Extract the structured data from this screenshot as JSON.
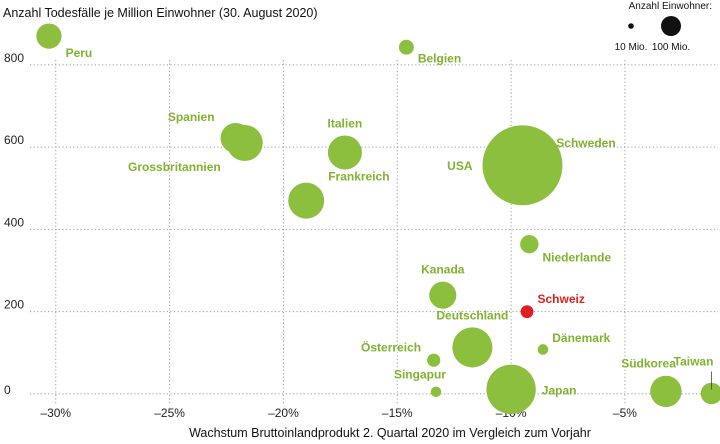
{
  "chart_data": {
    "type": "scatter",
    "title": "Anzahl Todesfälle je Million Einwohner (30. August 2020)",
    "xlabel": "Wachstum Bruttoinlandprodukt 2. Quartal 2020 im Vergleich zum Vorjahr",
    "ylabel": "Anzahl Todesfälle je Million Einwohner (30. August 2020)",
    "xlim": [
      -31,
      -1
    ],
    "ylim": [
      -10,
      880
    ],
    "x_ticks": [
      -30,
      -25,
      -20,
      -15,
      -10,
      -5
    ],
    "x_tick_labels": [
      "–30%",
      "–25%",
      "–20%",
      "–15%",
      "–10%",
      "–5%"
    ],
    "y_ticks": [
      0,
      200,
      400,
      600,
      800
    ],
    "y_tick_labels": [
      "0",
      "200",
      "400",
      "600",
      "800"
    ],
    "grid": "dotted",
    "size_legend": {
      "title": "Anzahl Einwohner:",
      "entries": [
        {
          "label": "10 Mio.",
          "population_mio": 10
        },
        {
          "label": "100 Mio.",
          "population_mio": 100
        }
      ]
    },
    "colors": {
      "default": "#8dbf3f",
      "highlight": "#e02020",
      "label": "#7fb22e"
    },
    "points": [
      {
        "label": "Peru",
        "x": -30.3,
        "y": 870,
        "population_mio": 33,
        "anchor": "right-below"
      },
      {
        "label": "Belgien",
        "x": -14.6,
        "y": 843,
        "population_mio": 11.5,
        "anchor": "right-below"
      },
      {
        "label": "Spanien",
        "x": -22.1,
        "y": 622,
        "population_mio": 47,
        "anchor": "left-above"
      },
      {
        "label": "Grossbritannien",
        "x": -21.7,
        "y": 610,
        "population_mio": 67,
        "anchor": "left-below"
      },
      {
        "label": "Italien",
        "x": -17.3,
        "y": 587,
        "population_mio": 60,
        "anchor": "above"
      },
      {
        "label": "Frankreich",
        "x": -19.0,
        "y": 470,
        "population_mio": 67,
        "anchor": "right-above"
      },
      {
        "label": "USA",
        "x": -9.5,
        "y": 556,
        "population_mio": 330,
        "anchor": "left"
      },
      {
        "label": "Schweden",
        "x": -8.5,
        "y": 578,
        "population_mio": 10.3,
        "anchor": "right-above"
      },
      {
        "label": "Niederlande",
        "x": -9.2,
        "y": 364,
        "population_mio": 17.4,
        "anchor": "right-below"
      },
      {
        "label": "Kanada",
        "x": -13.0,
        "y": 240,
        "population_mio": 38,
        "anchor": "above"
      },
      {
        "label": "Schweiz",
        "x": -9.3,
        "y": 200,
        "population_mio": 8.6,
        "anchor": "right-above",
        "highlight": true
      },
      {
        "label": "Deutschland",
        "x": -11.7,
        "y": 113,
        "population_mio": 83,
        "anchor": "above"
      },
      {
        "label": "Dänemark",
        "x": -8.6,
        "y": 108,
        "population_mio": 5.8,
        "anchor": "right-above"
      },
      {
        "label": "Österreich",
        "x": -13.4,
        "y": 82,
        "population_mio": 9,
        "anchor": "left-above"
      },
      {
        "label": "Singapur",
        "x": -13.3,
        "y": 5,
        "population_mio": 5.7,
        "anchor": "above-left"
      },
      {
        "label": "Japan",
        "x": -10.0,
        "y": 11,
        "population_mio": 126,
        "anchor": "right"
      },
      {
        "label": "Südkorea",
        "x": -3.2,
        "y": 6,
        "population_mio": 51,
        "anchor": "above-left"
      },
      {
        "label": "Taiwan",
        "x": -1.2,
        "y": 1,
        "population_mio": 24,
        "anchor": "above-callout"
      }
    ]
  }
}
